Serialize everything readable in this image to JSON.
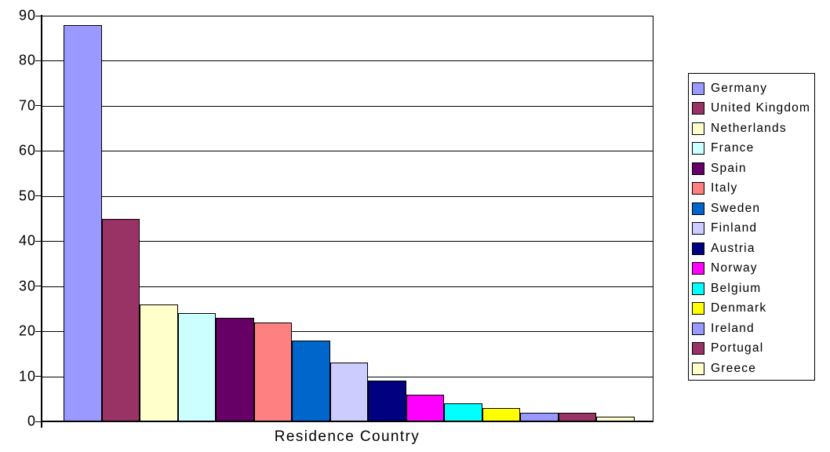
{
  "chart_data": {
    "type": "bar",
    "title": "",
    "xlabel": "Residence Country",
    "ylabel": "",
    "ylim": [
      0,
      90
    ],
    "ytick_step": 10,
    "ytick_labels": [
      "0",
      "10",
      "20",
      "30",
      "40",
      "50",
      "60",
      "70",
      "80",
      "90"
    ],
    "grid": true,
    "legend_position": "right",
    "categories": [
      "Germany",
      "United Kingdom",
      "Netherlands",
      "France",
      "Spain",
      "Italy",
      "Sweden",
      "Finland",
      "Austria",
      "Norway",
      "Belgium",
      "Denmark",
      "Ireland",
      "Portugal",
      "Greece"
    ],
    "values": [
      88,
      45,
      26,
      24,
      23,
      22,
      18,
      13,
      9,
      6,
      4,
      3,
      2,
      2,
      1
    ],
    "colors": [
      "#9999FF",
      "#993366",
      "#FFFFCC",
      "#CCFFFF",
      "#660066",
      "#FF8080",
      "#0066CC",
      "#CCCCFF",
      "#000080",
      "#FF00FF",
      "#00FFFF",
      "#FFFF00",
      "#9999FF",
      "#993366",
      "#FFFFCC"
    ],
    "bar_border_color": "#000000",
    "axis_color": "#000000",
    "background_color": "#FFFFFF"
  }
}
